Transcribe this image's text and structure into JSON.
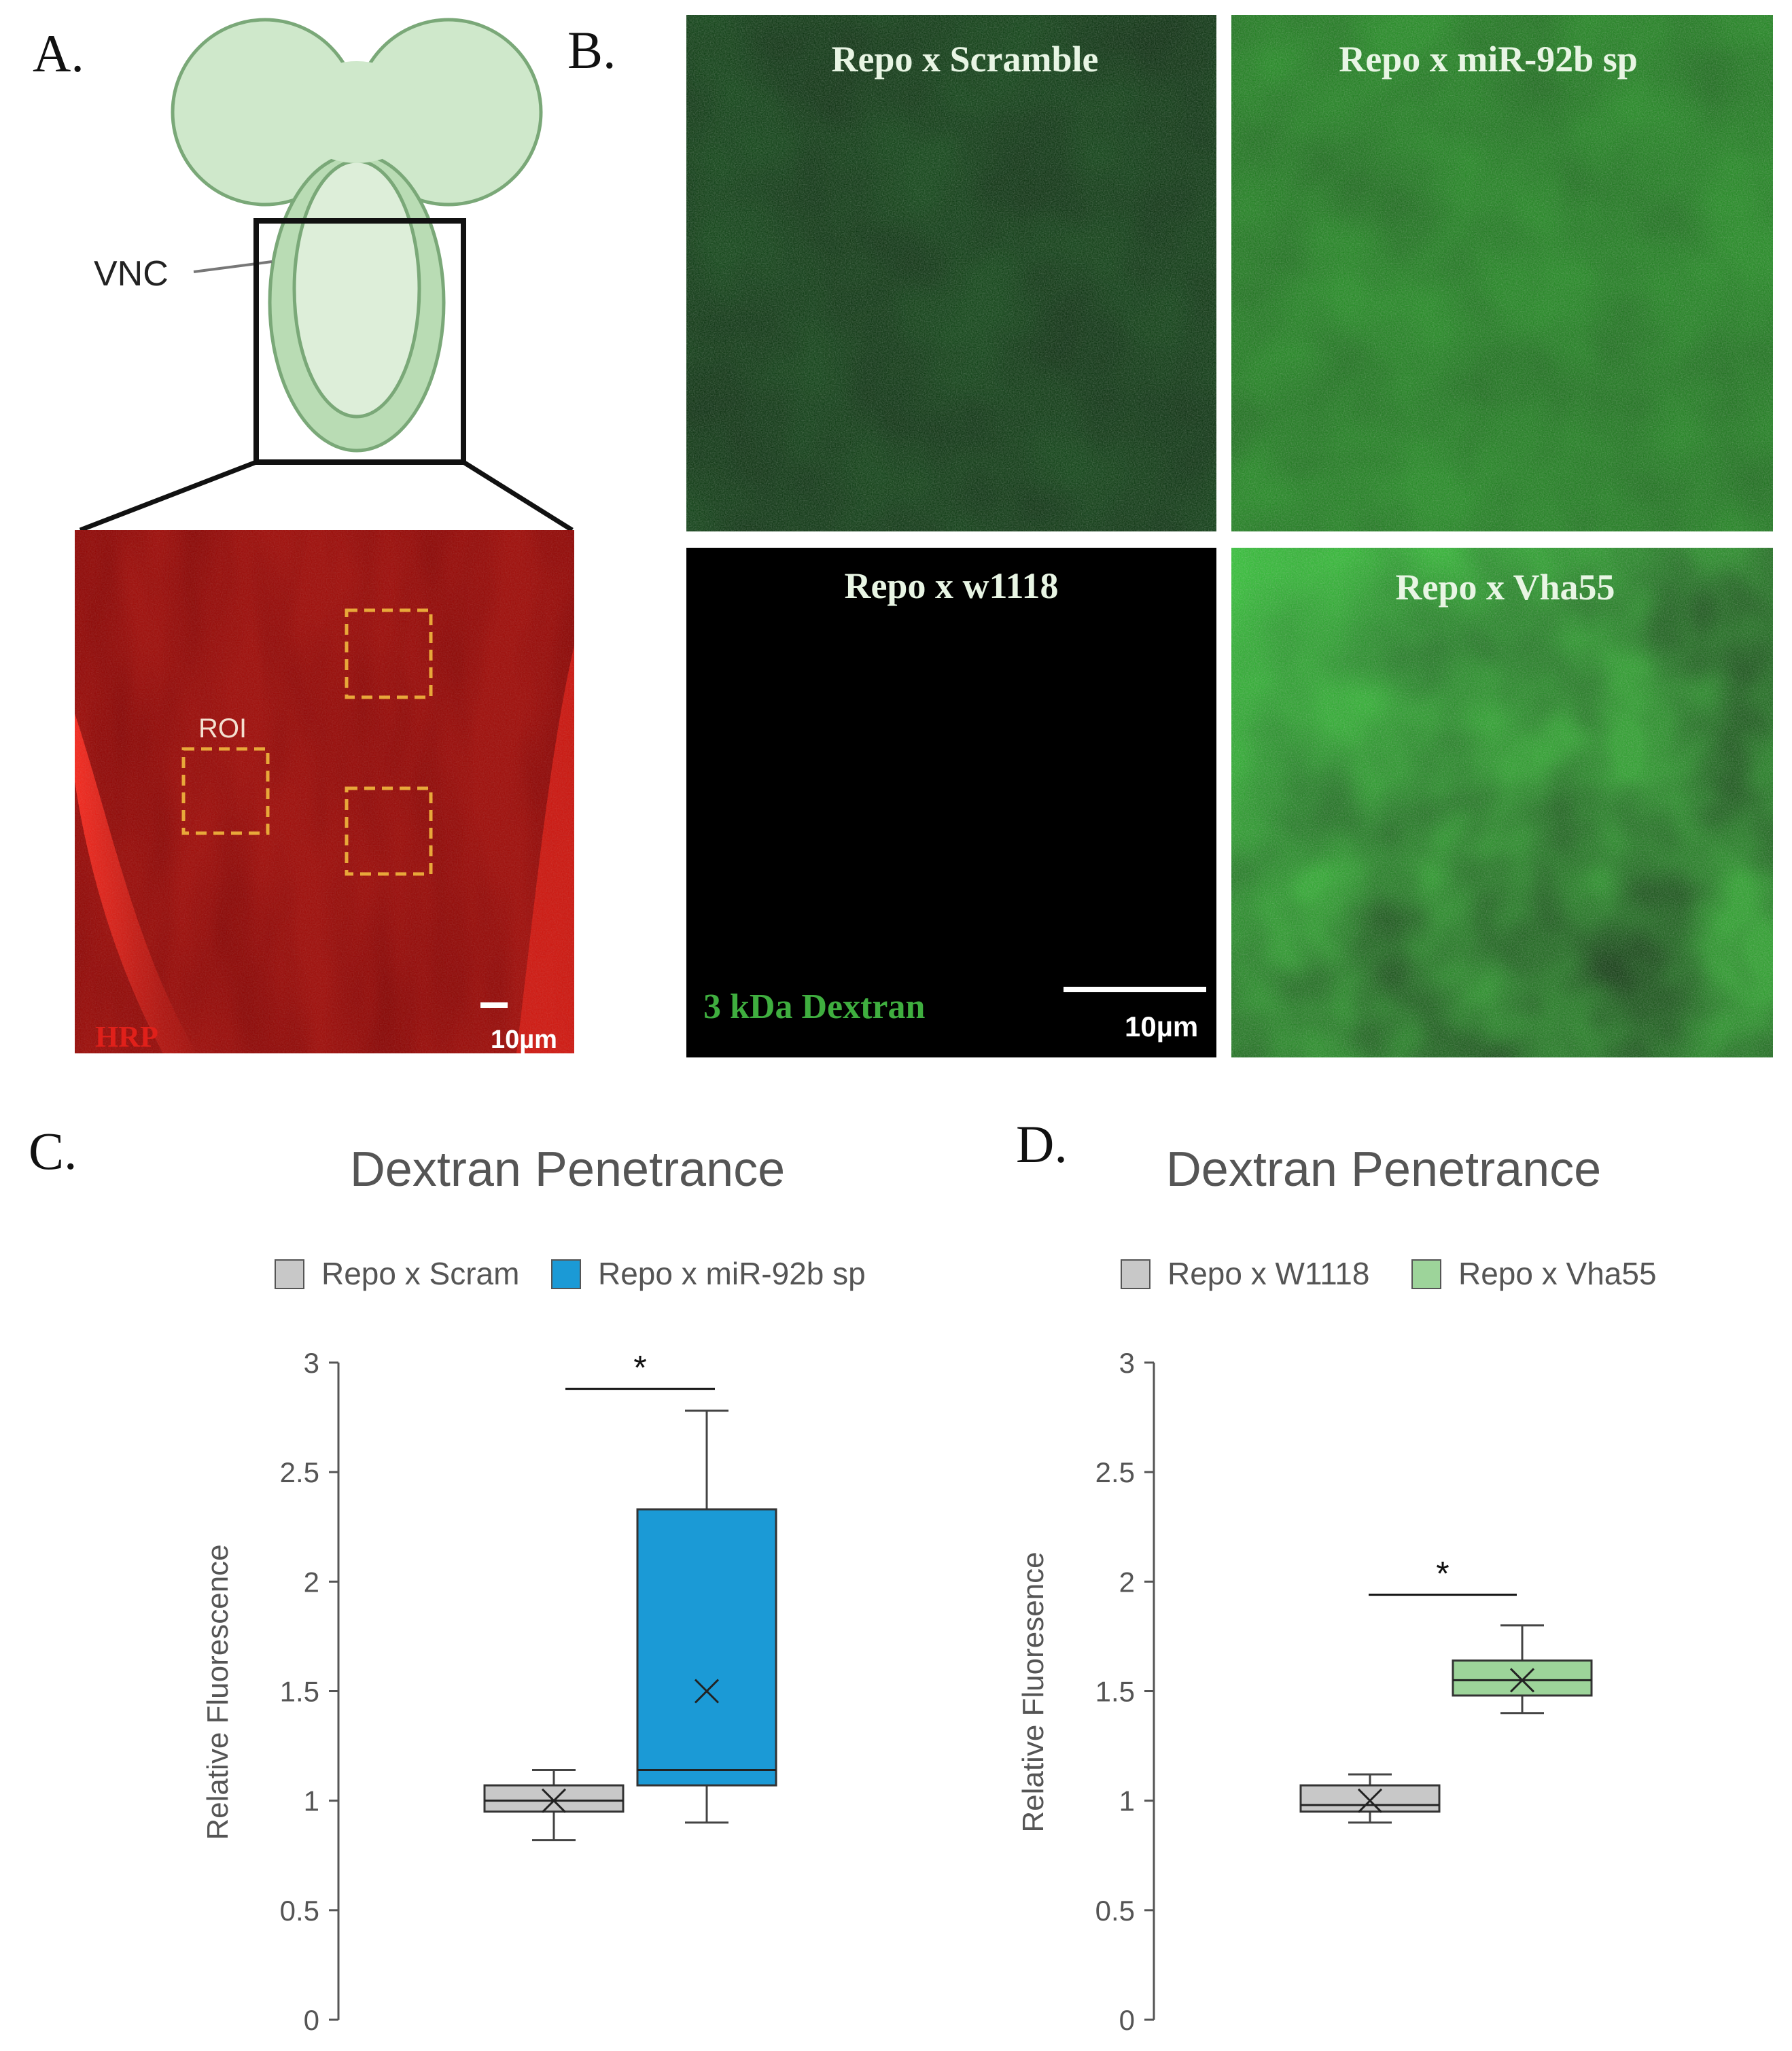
{
  "panel_letters": {
    "a": "A.",
    "b": "B.",
    "c": "C.",
    "d": "D."
  },
  "panel_a": {
    "vnc_label": "VNC",
    "roi_label": "ROI",
    "stain_label": "HRP",
    "scale_bar_label": "10µm",
    "colors": {
      "brain_fill": "#cfe8cb",
      "brain_stroke": "#7aa878",
      "hrp_red": "#d01a14",
      "roi_box": "#e8a83a"
    }
  },
  "panel_b": {
    "images": [
      {
        "title": "Repo x Scramble",
        "tone": "dim-green"
      },
      {
        "title": "Repo x miR-92b sp",
        "tone": "medium-green"
      },
      {
        "title": "Repo x w1118",
        "tone": "black"
      },
      {
        "title": "Repo x Vha55",
        "tone": "bright-green"
      }
    ],
    "dye_label": "3 kDa Dextran",
    "scale_bar_label": "10µm",
    "colors": {
      "dye_label": "#3fae3f"
    }
  },
  "chart_data": [
    {
      "type": "box",
      "title": "Dextran Penetrance",
      "ylabel": "Relative Fluorescence",
      "ylim": [
        0,
        3
      ],
      "yticks": [
        "0",
        "0.5",
        "1",
        "1.5",
        "2",
        "2.5",
        "3"
      ],
      "legend_position": "top",
      "significance": "*",
      "series": [
        {
          "name": "Repo x Scram",
          "color": "#c8c8c8",
          "min": 0.82,
          "q1": 0.95,
          "median": 1.0,
          "q3": 1.07,
          "max": 1.14,
          "mean": 1.0
        },
        {
          "name": "Repo x miR-92b sp",
          "color": "#1b9ad6",
          "min": 0.9,
          "q1": 1.07,
          "median": 1.14,
          "q3": 2.33,
          "max": 2.78,
          "mean": 1.5
        }
      ]
    },
    {
      "type": "box",
      "title": "Dextran Penetrance",
      "ylabel": "Relative Fluoresence",
      "ylim": [
        0,
        3
      ],
      "yticks": [
        "0",
        "0.5",
        "1",
        "1.5",
        "2",
        "2.5",
        "3"
      ],
      "legend_position": "top",
      "significance": "*",
      "series": [
        {
          "name": "Repo x W1118",
          "color": "#c8c8c8",
          "min": 0.9,
          "q1": 0.95,
          "median": 0.98,
          "q3": 1.07,
          "max": 1.12,
          "mean": 1.0
        },
        {
          "name": "Repo x Vha55",
          "color": "#9dd49a",
          "min": 1.4,
          "q1": 1.48,
          "median": 1.55,
          "q3": 1.64,
          "max": 1.8,
          "mean": 1.55
        }
      ]
    }
  ]
}
